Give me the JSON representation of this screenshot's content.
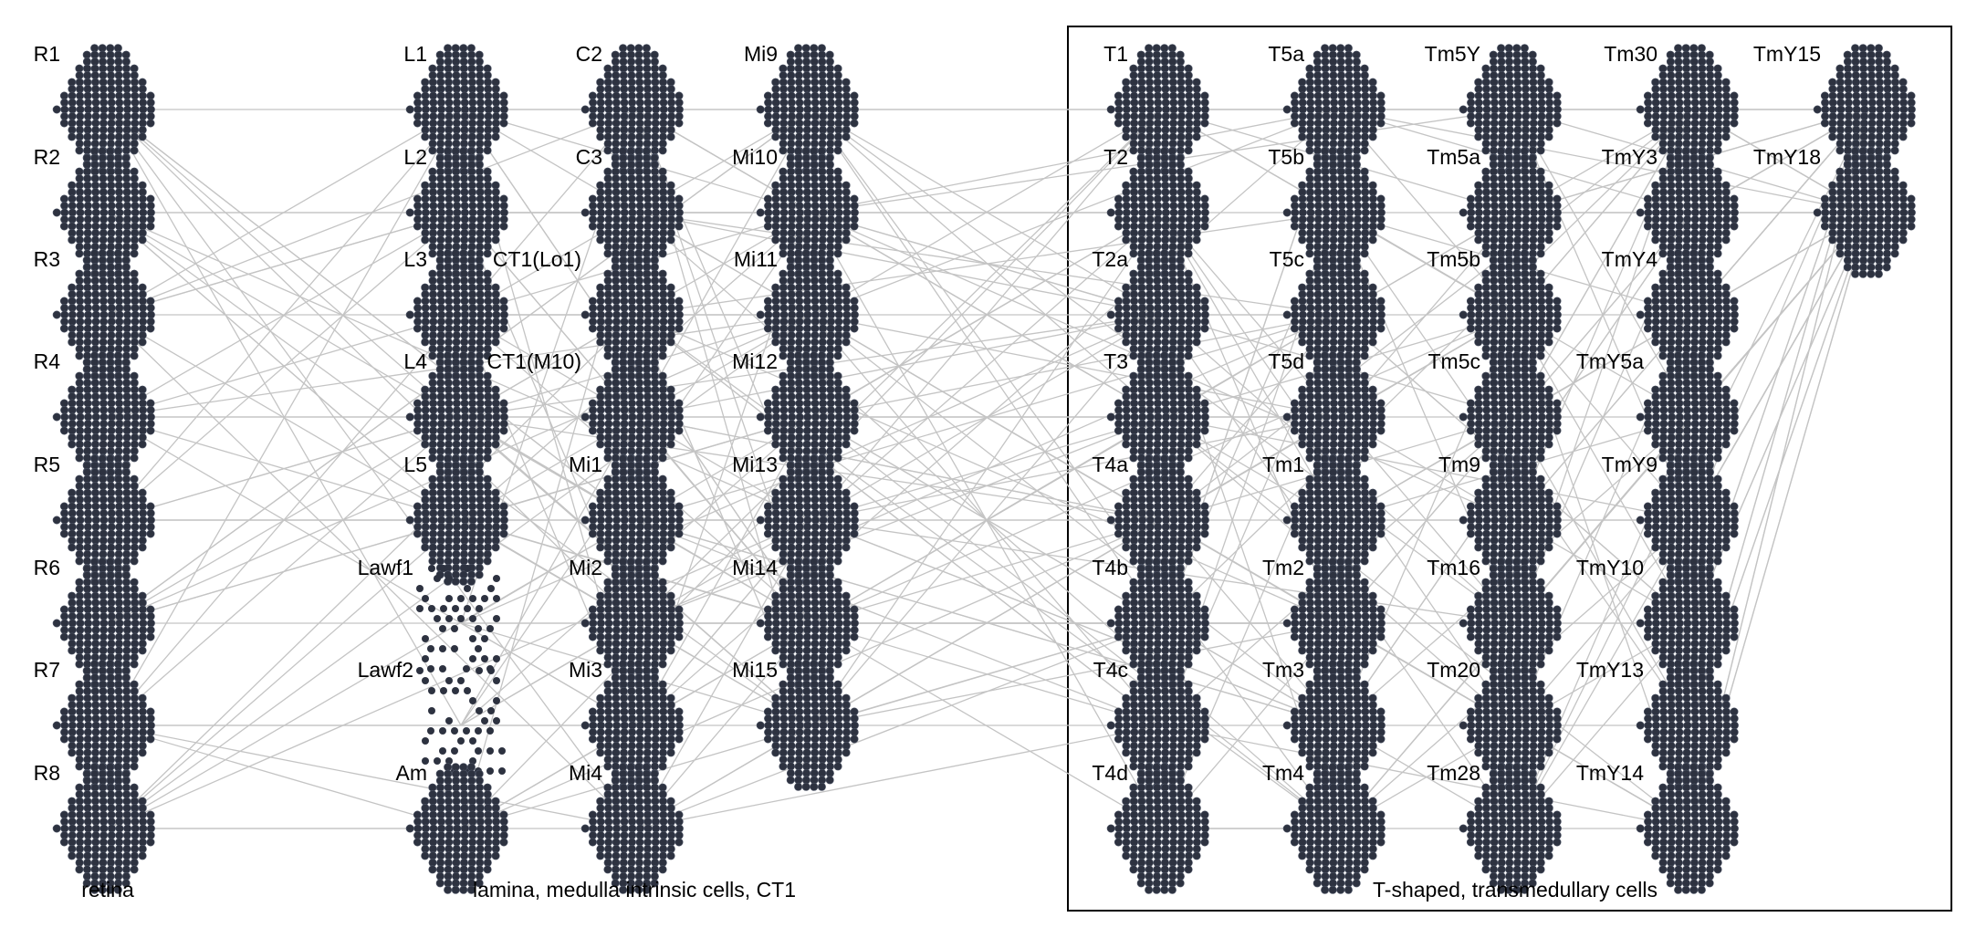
{
  "colors": {
    "node_fill": "#2d3240",
    "node_stroke": "#4e5566",
    "edge": "#c4c4c4",
    "frame": "#000000"
  },
  "groups": [
    {
      "label": "retina"
    },
    {
      "label": "lamina, medulla intrinsic cells, CT1"
    },
    {
      "label": "T-shaped, transmedullary cells"
    }
  ],
  "columns": [
    {
      "cells": [
        "R1",
        "R2",
        "R3",
        "R4",
        "R5",
        "R6",
        "R7",
        "R8"
      ]
    },
    {
      "cells": [
        "L1",
        "L2",
        "L3",
        "L4",
        "L5",
        "Lawf1",
        "Lawf2",
        "Am"
      ]
    },
    {
      "cells": [
        "C2",
        "C3",
        "CT1(Lo1)",
        "CT1(M10)",
        "Mi1",
        "Mi2",
        "Mi3",
        "Mi4"
      ]
    },
    {
      "cells": [
        "Mi9",
        "Mi10",
        "Mi11",
        "Mi12",
        "Mi13",
        "Mi14",
        "Mi15"
      ]
    },
    {
      "cells": [
        "T1",
        "T2",
        "T2a",
        "T3",
        "T4a",
        "T4b",
        "T4c",
        "T4d"
      ]
    },
    {
      "cells": [
        "T5a",
        "T5b",
        "T5c",
        "T5d",
        "Tm1",
        "Tm2",
        "Tm3",
        "Tm4"
      ]
    },
    {
      "cells": [
        "Tm5Y",
        "Tm5a",
        "Tm5b",
        "Tm5c",
        "Tm9",
        "Tm16",
        "Tm20",
        "Tm28"
      ]
    },
    {
      "cells": [
        "Tm30",
        "TmY3",
        "TmY4",
        "TmY5a",
        "TmY9",
        "TmY10",
        "TmY13",
        "TmY14"
      ]
    },
    {
      "cells": [
        "TmY15",
        "TmY18"
      ]
    }
  ],
  "sparse_cells": [
    "Lawf1",
    "Lawf2"
  ]
}
